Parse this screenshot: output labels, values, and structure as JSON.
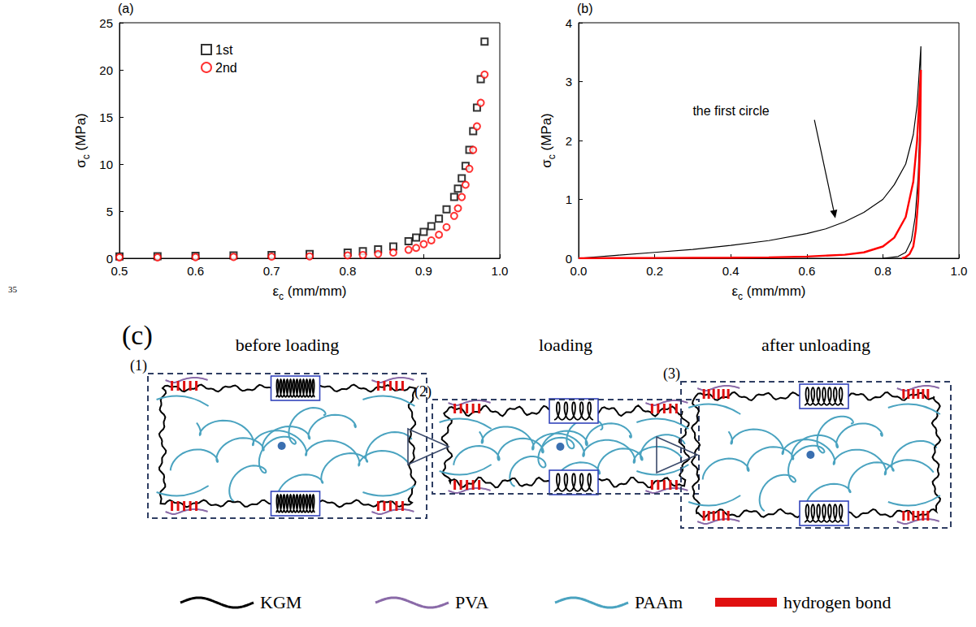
{
  "margin_note": "35",
  "chart_data": [
    {
      "panel_label": "(a)",
      "type": "scatter",
      "xlabel": {
        "symbol": "ε",
        "sub": "c",
        "unit": "(mm/mm)"
      },
      "ylabel": {
        "symbol": "σ",
        "sub": "c",
        "unit": "(MPa)"
      },
      "xlim": [
        0.5,
        1.0
      ],
      "xticks": [
        0.5,
        0.6,
        0.7,
        0.8,
        0.9,
        {
          "value": 1.0,
          "label": "1.0"
        }
      ],
      "ylim": [
        0,
        25
      ],
      "yticks": [
        0,
        5,
        10,
        15,
        20,
        25
      ],
      "grid": false,
      "legend": "upper left",
      "series": [
        {
          "name": "1st",
          "color": "#000000",
          "marker": "open square",
          "x": [
            0.5,
            0.55,
            0.6,
            0.65,
            0.7,
            0.75,
            0.8,
            0.82,
            0.84,
            0.86,
            0.88,
            0.89,
            0.9,
            0.91,
            0.92,
            0.93,
            0.94,
            0.945,
            0.95,
            0.955,
            0.96,
            0.965,
            0.97,
            0.975,
            0.98
          ],
          "values": [
            0.2,
            0.22,
            0.25,
            0.3,
            0.35,
            0.45,
            0.6,
            0.75,
            0.95,
            1.25,
            1.8,
            2.2,
            2.8,
            3.4,
            4.2,
            5.2,
            6.5,
            7.4,
            8.5,
            9.8,
            11.5,
            13.5,
            16,
            19,
            23
          ]
        },
        {
          "name": "2nd",
          "color": "#ff0000",
          "marker": "open circle",
          "x": [
            0.5,
            0.55,
            0.6,
            0.65,
            0.7,
            0.75,
            0.8,
            0.82,
            0.84,
            0.86,
            0.88,
            0.89,
            0.9,
            0.91,
            0.92,
            0.93,
            0.94,
            0.945,
            0.95,
            0.955,
            0.96,
            0.965,
            0.97,
            0.975,
            0.98
          ],
          "values": [
            0.1,
            0.1,
            0.12,
            0.14,
            0.17,
            0.2,
            0.3,
            0.35,
            0.45,
            0.6,
            0.9,
            1.1,
            1.5,
            1.9,
            2.5,
            3.3,
            4.5,
            5.3,
            6.5,
            7.8,
            9.5,
            11.5,
            14,
            16.5,
            19.5
          ]
        }
      ]
    },
    {
      "panel_label": "(b)",
      "type": "line",
      "xlabel": {
        "symbol": "ε",
        "sub": "c",
        "unit": "(mm/mm)"
      },
      "ylabel": {
        "symbol": "σ",
        "sub": "c",
        "unit": "(MPa)"
      },
      "xlim": [
        0,
        1.0
      ],
      "xticks": [
        {
          "value": 0,
          "label": "0.0"
        },
        0.2,
        0.4,
        0.6,
        0.8,
        {
          "value": 1.0,
          "label": "1.0"
        }
      ],
      "ylim": [
        0,
        4
      ],
      "yticks": [
        0,
        1,
        2,
        3,
        4
      ],
      "grid": false,
      "annotations": [
        {
          "text": "the first circle"
        }
      ],
      "series": [
        {
          "color": "#000000",
          "line_style": "solid",
          "x": [
            0,
            0.1,
            0.2,
            0.3,
            0.4,
            0.5,
            0.6,
            0.65,
            0.7,
            0.75,
            0.8,
            0.83,
            0.86,
            0.88,
            0.89,
            0.9,
            0.898,
            0.893,
            0.885,
            0.875,
            0.86,
            0.84,
            0.8
          ],
          "values": [
            0,
            0.05,
            0.1,
            0.15,
            0.22,
            0.3,
            0.42,
            0.5,
            0.62,
            0.78,
            1.0,
            1.25,
            1.6,
            2.1,
            2.6,
            3.6,
            2.4,
            1.4,
            0.7,
            0.3,
            0.1,
            0.03,
            0
          ]
        },
        {
          "color": "#ff0000",
          "line_style": "solid",
          "x": [
            0,
            0.2,
            0.4,
            0.5,
            0.6,
            0.7,
            0.75,
            0.8,
            0.83,
            0.86,
            0.88,
            0.89,
            0.9,
            0.898,
            0.893,
            0.887,
            0.88,
            0.87,
            0.86,
            0.85
          ],
          "values": [
            0,
            0.005,
            0.01,
            0.015,
            0.03,
            0.06,
            0.1,
            0.2,
            0.35,
            0.7,
            1.3,
            2.0,
            3.2,
            2.0,
            1.0,
            0.5,
            0.2,
            0.07,
            0.02,
            0
          ]
        }
      ]
    }
  ],
  "diagram": {
    "label": "(c)",
    "panels": [
      {
        "number": "(1)",
        "title": "before loading"
      },
      {
        "number": "(2)",
        "title": "loading"
      },
      {
        "number": "(3)",
        "title": "after unloading"
      }
    ],
    "legend": [
      {
        "label": "KGM",
        "color": "#000000",
        "marker": "wave"
      },
      {
        "label": "PVA",
        "color": "#8a6aa8",
        "marker": "wave"
      },
      {
        "label": "PAAm",
        "color": "#4aa3c0",
        "marker": "wave"
      },
      {
        "label": "hydrogen bond",
        "color": "#e01010",
        "marker": "bar"
      }
    ]
  }
}
